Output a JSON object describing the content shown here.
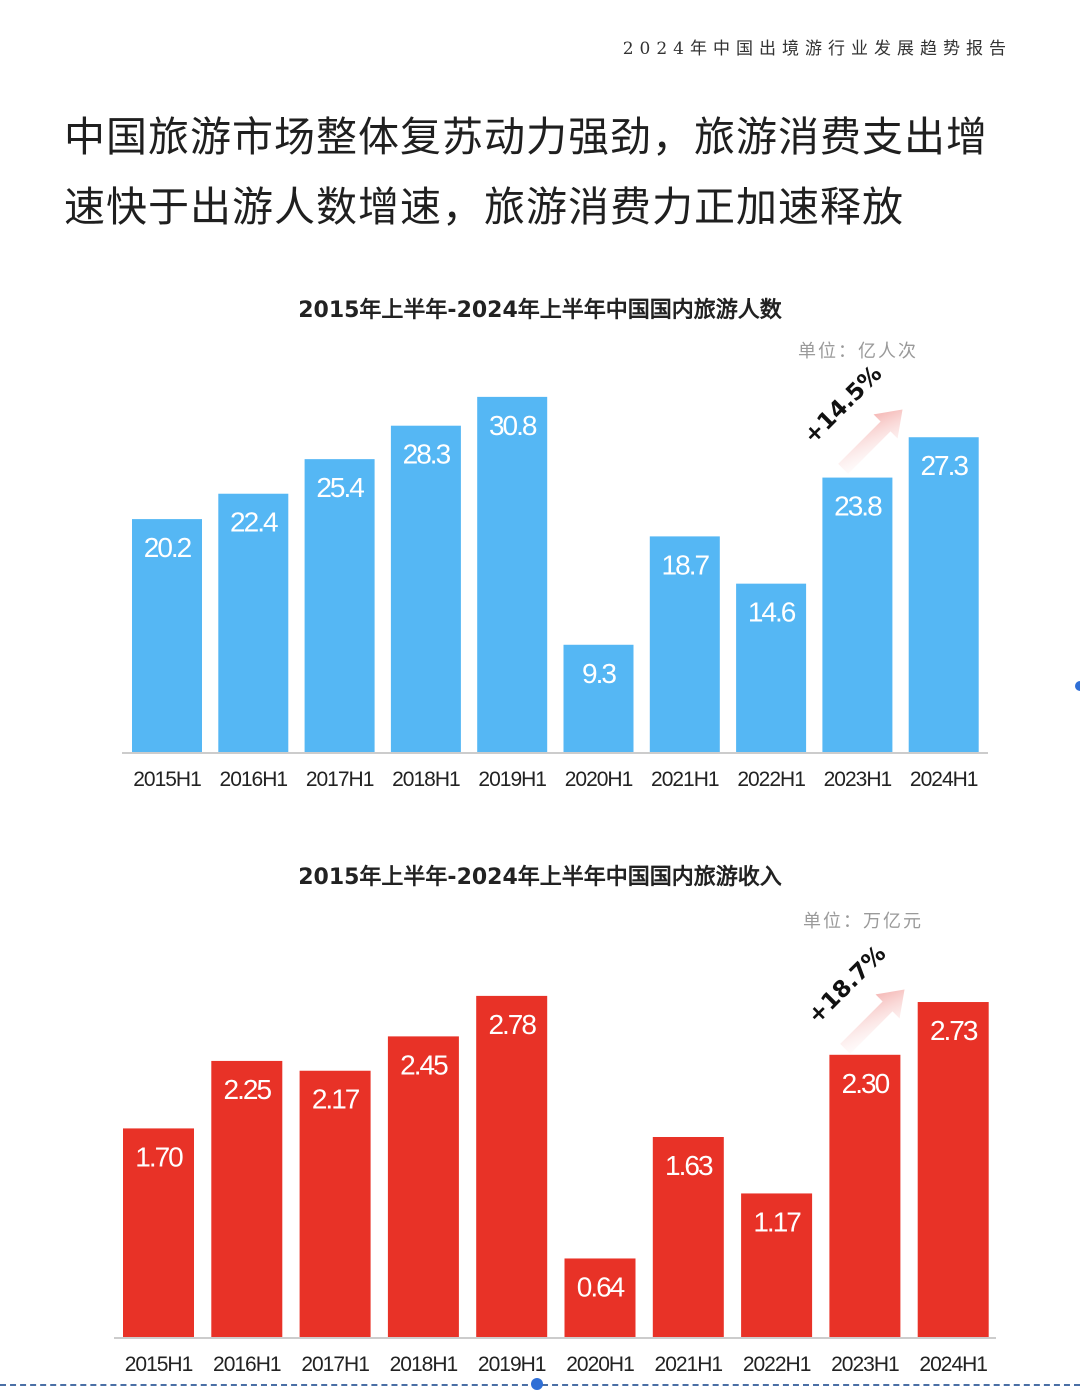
{
  "header": {
    "report_title": "2024年中国出境游行业发展趋势报告"
  },
  "headline": {
    "line1": "中国旅游市场整体复苏动力强劲，旅游消费支出增",
    "line2": "速快于出游人数增速，旅游消费力正加速释放"
  },
  "chart_data": [
    {
      "type": "bar",
      "title": "2015年上半年-2024年上半年中国国内旅游人数",
      "unit": "单位：亿人次",
      "categories": [
        "2015H1",
        "2016H1",
        "2017H1",
        "2018H1",
        "2019H1",
        "2020H1",
        "2021H1",
        "2022H1",
        "2023H1",
        "2024H1"
      ],
      "values": [
        20.2,
        22.4,
        25.4,
        28.3,
        30.8,
        9.3,
        18.7,
        14.6,
        23.8,
        27.3
      ],
      "value_labels": [
        "20.2",
        "22.4",
        "25.4",
        "28.3",
        "30.8",
        "9.3",
        "18.7",
        "14.6",
        "23.8",
        "27.3"
      ],
      "growth_annotation": "+14.5%",
      "color": "#55b7f4",
      "grid": false,
      "legend": "none"
    },
    {
      "type": "bar",
      "title": "2015年上半年-2024年上半年中国国内旅游收入",
      "unit": "单位：万亿元",
      "categories": [
        "2015H1",
        "2016H1",
        "2017H1",
        "2018H1",
        "2019H1",
        "2020H1",
        "2021H1",
        "2022H1",
        "2023H1",
        "2024H1"
      ],
      "values": [
        1.7,
        2.25,
        2.17,
        2.45,
        2.78,
        0.64,
        1.63,
        1.17,
        2.3,
        2.73
      ],
      "value_labels": [
        "1.70",
        "2.25",
        "2.17",
        "2.45",
        "2.78",
        "0.64",
        "1.63",
        "1.17",
        "2.30",
        "2.73"
      ],
      "growth_annotation": "+18.7%",
      "color": "#e83227",
      "grid": false,
      "legend": "none"
    }
  ],
  "colors": {
    "blue_bar": "#55b7f4",
    "red_bar": "#e83227",
    "arrow": "#f2a3a0"
  }
}
